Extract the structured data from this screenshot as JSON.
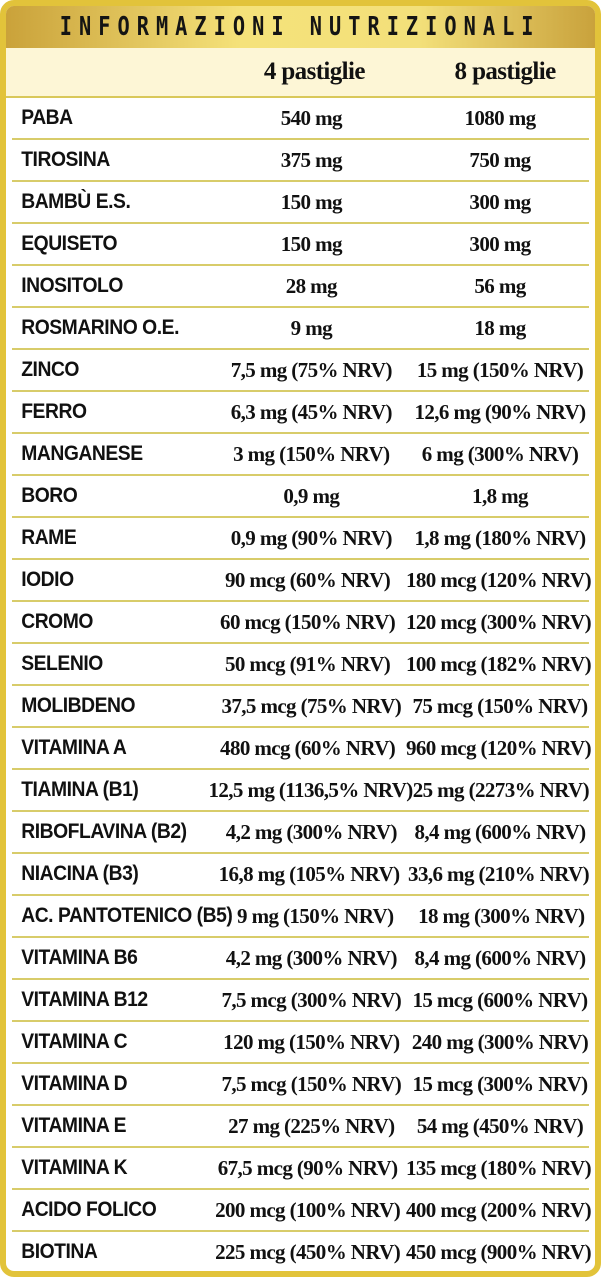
{
  "title": "INFORMAZIONI NUTRIZIONALI",
  "columns": [
    "",
    "4 pastiglie",
    "8 pastiglie"
  ],
  "colors": {
    "border": "#e2c33a",
    "title_bar": "#f5e27a",
    "header_bg": "#fdf6d6",
    "row_line": "#d8cc6a"
  },
  "rows": [
    [
      "PABA",
      "540 mg",
      "1080 mg"
    ],
    [
      "TIROSINA",
      "375 mg",
      "750 mg"
    ],
    [
      "BAMBÙ E.S.",
      "150 mg",
      "300 mg"
    ],
    [
      "EQUISETO",
      "150 mg",
      "300 mg"
    ],
    [
      "INOSITOLO",
      "28 mg",
      "56 mg"
    ],
    [
      "ROSMARINO O.E.",
      "9 mg",
      "18 mg"
    ],
    [
      "ZINCO",
      "7,5 mg (75% NRV)",
      "15 mg (150% NRV)"
    ],
    [
      "FERRO",
      "6,3 mg (45% NRV)",
      "12,6 mg (90% NRV)"
    ],
    [
      "MANGANESE",
      "3 mg (150% NRV)",
      "6 mg (300% NRV)"
    ],
    [
      "BORO",
      "0,9 mg",
      "1,8 mg"
    ],
    [
      "RAME",
      "0,9 mg (90% NRV)",
      "1,8 mg (180% NRV)"
    ],
    [
      "IODIO",
      "90 mcg (60% NRV)",
      "180 mcg (120% NRV)"
    ],
    [
      "CROMO",
      "60 mcg (150% NRV)",
      "120 mcg (300% NRV)"
    ],
    [
      "SELENIO",
      "50 mcg (91% NRV)",
      "100 mcg (182% NRV)"
    ],
    [
      "MOLIBDENO",
      "37,5 mcg (75% NRV)",
      "75 mcg (150% NRV)"
    ],
    [
      "VITAMINA A",
      "480 mcg (60% NRV)",
      "960 mcg (120% NRV)"
    ],
    [
      "TIAMINA (B1)",
      "12,5 mg (1136,5% NRV)",
      "25 mg (2273% NRV)"
    ],
    [
      "RIBOFLAVINA (B2)",
      "4,2 mg (300% NRV)",
      "8,4 mg (600% NRV)"
    ],
    [
      "NIACINA (B3)",
      "16,8 mg (105% NRV)",
      "33,6 mg (210% NRV)"
    ],
    [
      "AC. PANTOTENICO (B5)",
      "9 mg (150% NRV)",
      "18 mg (300% NRV)"
    ],
    [
      "VITAMINA B6",
      "4,2 mg (300% NRV)",
      "8,4 mg (600% NRV)"
    ],
    [
      "VITAMINA B12",
      "7,5 mcg (300% NRV)",
      "15 mcg (600% NRV)"
    ],
    [
      "VITAMINA C",
      "120 mg (150% NRV)",
      "240 mg (300% NRV)"
    ],
    [
      "VITAMINA D",
      "7,5 mcg (150% NRV)",
      "15 mcg (300% NRV)"
    ],
    [
      "VITAMINA E",
      "27 mg (225% NRV)",
      "54 mg (450% NRV)"
    ],
    [
      "VITAMINA K",
      "67,5 mcg (90% NRV)",
      "135 mcg (180% NRV)"
    ],
    [
      "ACIDO FOLICO",
      "200 mcg (100% NRV)",
      "400 mcg (200% NRV)"
    ],
    [
      "BIOTINA",
      "225 mcg (450% NRV)",
      "450 mcg (900% NRV)"
    ]
  ]
}
